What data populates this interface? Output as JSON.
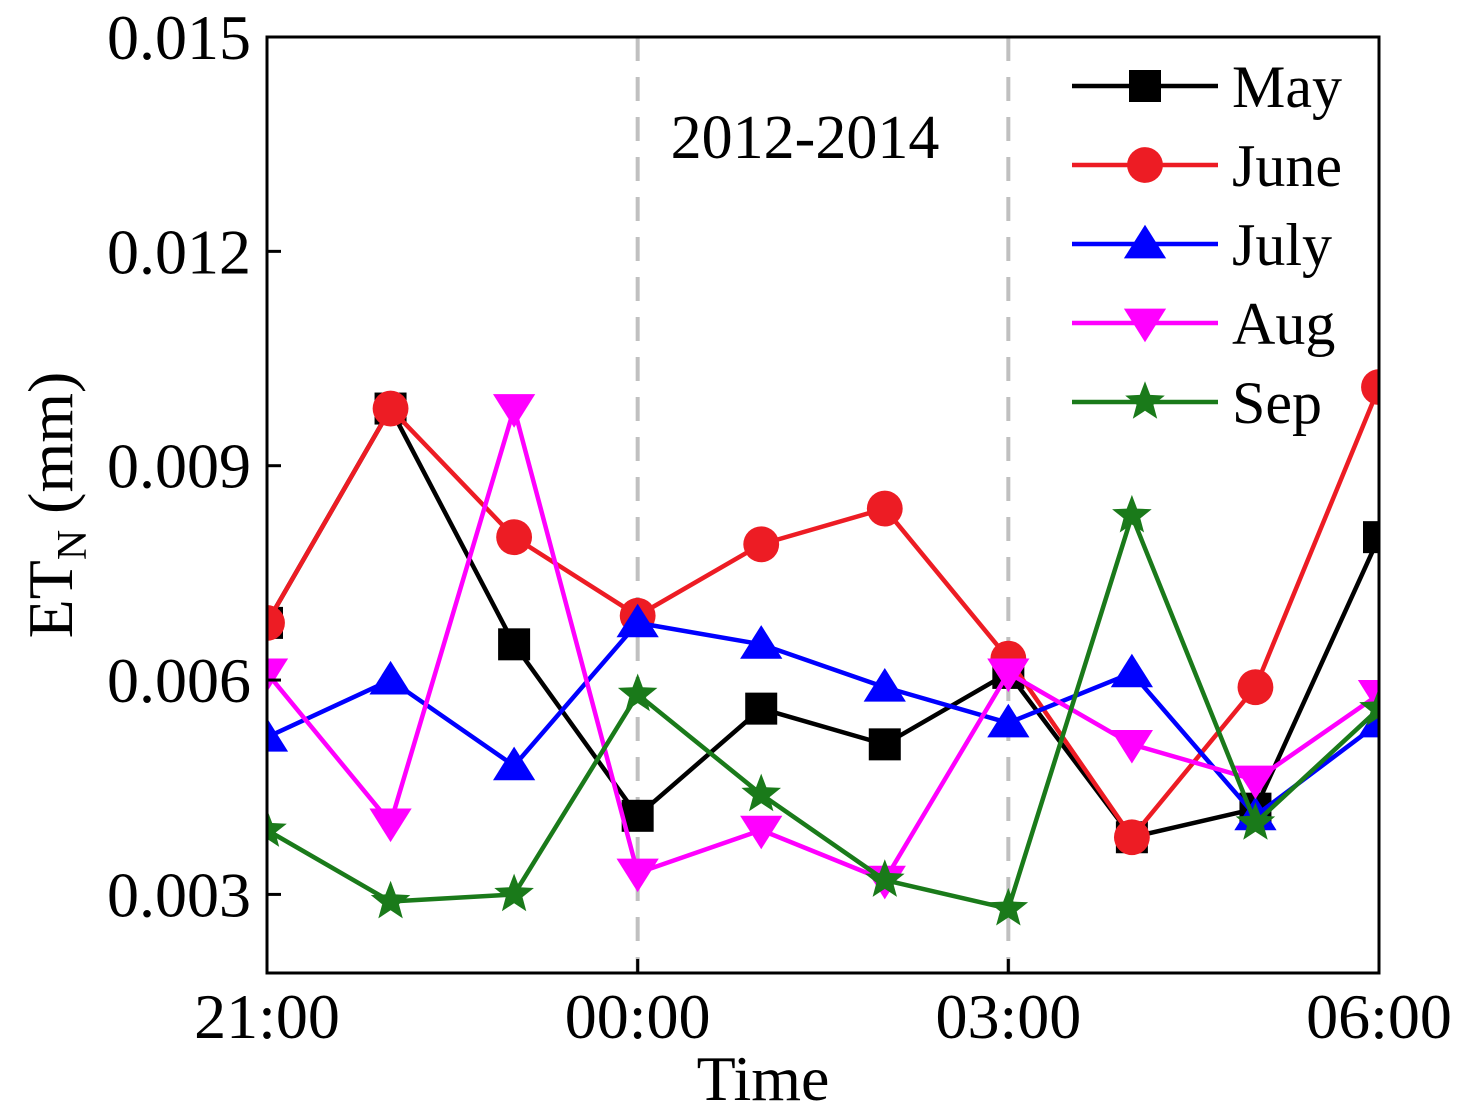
{
  "chart_data": {
    "type": "line",
    "title": "",
    "annotation": "2012-2014",
    "xlabel": "Time",
    "ylabel": "ET",
    "ylabel_subscript": "N",
    "ylabel_unit": " (mm)",
    "x": [
      0,
      1,
      2,
      3,
      4,
      5,
      6,
      7,
      8,
      9
    ],
    "xticks": [
      {
        "pos": 0,
        "label": "21:00"
      },
      {
        "pos": 3,
        "label": "00:00"
      },
      {
        "pos": 6,
        "label": "03:00"
      },
      {
        "pos": 9,
        "label": "06:00"
      }
    ],
    "xlim": [
      0,
      9
    ],
    "ylim": [
      0.0019,
      0.015
    ],
    "yticks": [
      {
        "value": 0.003,
        "label": "0.003"
      },
      {
        "value": 0.006,
        "label": "0.006"
      },
      {
        "value": 0.009,
        "label": "0.009"
      },
      {
        "value": 0.012,
        "label": "0.012"
      },
      {
        "value": 0.015,
        "label": "0.015"
      }
    ],
    "vlines": [
      3,
      6
    ],
    "legend_position": "top-right",
    "series": [
      {
        "name": "May",
        "color": "#000000",
        "marker": "square",
        "values": [
          0.0068,
          0.0098,
          0.0065,
          0.0041,
          0.0056,
          0.0051,
          0.0061,
          0.0038,
          0.0042,
          0.008
        ]
      },
      {
        "name": "June",
        "color": "#ed1c24",
        "marker": "circle",
        "values": [
          0.0068,
          0.0098,
          0.008,
          0.0069,
          0.0079,
          0.0084,
          0.0063,
          0.0038,
          0.0059,
          0.0101
        ]
      },
      {
        "name": "July",
        "color": "#0000ff",
        "marker": "triangle-up",
        "values": [
          0.0052,
          0.006,
          0.0048,
          0.0068,
          0.0065,
          0.0059,
          0.0054,
          0.0061,
          0.0041,
          0.0054
        ]
      },
      {
        "name": "Aug",
        "color": "#ff00ff",
        "marker": "triangle-down",
        "values": [
          0.0061,
          0.004,
          0.0098,
          0.0033,
          0.0039,
          0.0032,
          0.0061,
          0.0051,
          0.0046,
          0.0058
        ]
      },
      {
        "name": "Sep",
        "color": "#1a7a1a",
        "marker": "star",
        "values": [
          0.0039,
          0.0029,
          0.003,
          0.0058,
          0.0044,
          0.0032,
          0.0028,
          0.0083,
          0.004,
          0.0056
        ]
      }
    ]
  }
}
